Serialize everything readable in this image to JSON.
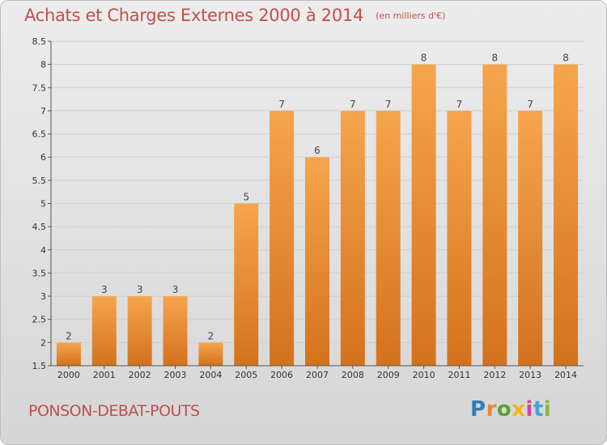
{
  "title": "Achats et Charges Externes 2000 à 2014",
  "subtitle": "(en milliers d'€)",
  "location": "PONSON-DEBAT-POUTS",
  "logo": {
    "letters": [
      "P",
      "r",
      "o",
      "x",
      "i",
      "t",
      "i"
    ]
  },
  "colors": {
    "bar_top": "#f6a54e",
    "bar_bottom": "#d4721c",
    "title": "#c0504d",
    "grid": "#cfcfcf"
  },
  "chart_data": {
    "type": "bar",
    "categories": [
      "2000",
      "2001",
      "2002",
      "2003",
      "2004",
      "2005",
      "2006",
      "2007",
      "2008",
      "2009",
      "2010",
      "2011",
      "2012",
      "2013",
      "2014"
    ],
    "values": [
      2,
      3,
      3,
      3,
      2,
      5,
      7,
      6,
      7,
      7,
      8,
      7,
      8,
      7,
      8
    ],
    "data_labels": [
      "2",
      "3",
      "3",
      "3",
      "2",
      "5",
      "7",
      "6",
      "7",
      "7",
      "8",
      "7",
      "8",
      "7",
      "8"
    ],
    "ylim": [
      1.5,
      8.5
    ],
    "yticks": [
      "1.5",
      "2",
      "2.5",
      "3",
      "3.5",
      "4",
      "4.5",
      "5",
      "5.5",
      "6",
      "6.5",
      "7",
      "7.5",
      "8",
      "8.5"
    ],
    "grid": true,
    "xlabel": "",
    "ylabel": ""
  }
}
